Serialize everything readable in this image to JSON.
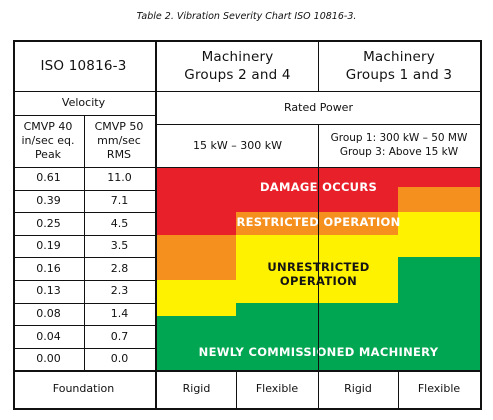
{
  "caption": "Table 2.  Vibration Severity Chart ISO 10816-3.",
  "header": {
    "standard": "ISO 10816-3",
    "groups_2_4": "Machinery\nGroups 2 and 4",
    "groups_1_3": "Machinery\nGroups 1 and 3",
    "velocity": "Velocity",
    "rated_power": "Rated Power",
    "cmvp_peak": "CMVP 40\nin/sec eq.\nPeak",
    "cmvp_rms": "CMVP 50\nmm/sec\nRMS",
    "power_2_4": "15 kW – 300 kW",
    "power_1_3": "Group 1:  300 kW – 50 MW\nGroup 3:  Above 15 kW"
  },
  "rows": [
    {
      "peak": "0.61",
      "rms": "11.0"
    },
    {
      "peak": "0.39",
      "rms": "7.1"
    },
    {
      "peak": "0.25",
      "rms": "4.5"
    },
    {
      "peak": "0.19",
      "rms": "3.5"
    },
    {
      "peak": "0.16",
      "rms": "2.8"
    },
    {
      "peak": "0.13",
      "rms": "2.3"
    },
    {
      "peak": "0.08",
      "rms": "1.4"
    },
    {
      "peak": "0.04",
      "rms": "0.7"
    },
    {
      "peak": "0.00",
      "rms": "0.0"
    }
  ],
  "zones": {
    "damage": "DAMAGE OCCURS",
    "restricted": "RESTRICTED OPERATION",
    "unrestricted": "UNRESTRICTED\nOPERATION",
    "new": "NEWLY COMMISSIONED MACHINERY"
  },
  "footer": {
    "foundation": "Foundation",
    "col1": "Rigid",
    "col2": "Flexible",
    "col3": "Rigid",
    "col4": "Flexible"
  },
  "colors": {
    "damage": "#e8202a",
    "restricted": "#f5901e",
    "unrestricted": "#fff200",
    "new": "#00a651"
  }
}
